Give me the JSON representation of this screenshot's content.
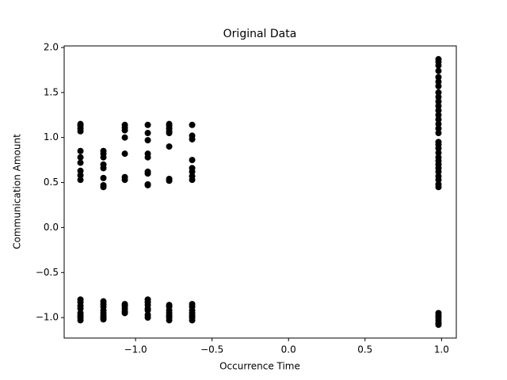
{
  "chart_data": {
    "type": "scatter",
    "title": "Original Data",
    "x_label": "Occurrence Time",
    "y_label": "Communication Amount",
    "color": "#000000",
    "x": [
      -1.36,
      -1.36,
      -1.36,
      -1.36,
      -1.36,
      -1.36,
      -1.36,
      -1.36,
      -1.36,
      -1.36,
      -1.36,
      -1.36,
      -1.36,
      -1.36,
      -1.36,
      -1.36,
      -1.36,
      -1.36,
      -1.21,
      -1.21,
      -1.21,
      -1.21,
      -1.21,
      -1.21,
      -1.21,
      -1.21,
      -1.21,
      -1.21,
      -1.21,
      -1.21,
      -1.21,
      -1.21,
      -1.21,
      -1.21,
      -1.07,
      -1.07,
      -1.07,
      -1.07,
      -1.07,
      -1.07,
      -1.07,
      -1.07,
      -1.07,
      -1.07,
      -1.07,
      -1.07,
      -0.92,
      -0.92,
      -0.92,
      -0.92,
      -0.92,
      -0.92,
      -0.92,
      -0.92,
      -0.92,
      -0.92,
      -0.92,
      -0.92,
      -0.92,
      -0.92,
      -0.92,
      -0.92,
      -0.78,
      -0.78,
      -0.78,
      -0.78,
      -0.78,
      -0.78,
      -0.78,
      -0.78,
      -0.78,
      -0.78,
      -0.78,
      -0.78,
      -0.78,
      -0.78,
      -0.78,
      -0.63,
      -0.63,
      -0.63,
      -0.63,
      -0.63,
      -0.63,
      -0.63,
      -0.63,
      -0.63,
      -0.63,
      -0.63,
      -0.63,
      -0.63,
      -0.63,
      -0.63,
      0.98,
      0.98,
      0.98,
      0.98,
      0.98,
      0.98,
      0.98,
      0.98,
      0.98,
      0.98,
      0.98,
      0.98,
      0.98,
      0.98,
      0.98,
      0.98,
      0.98,
      0.98,
      0.98,
      0.98,
      0.98,
      0.98,
      0.98,
      0.98,
      0.98,
      0.98,
      0.98,
      0.98,
      0.98,
      0.98,
      0.98,
      0.98,
      0.98,
      0.98,
      0.98,
      0.98
    ],
    "values": [
      1.15,
      1.13,
      1.1,
      1.07,
      0.85,
      0.78,
      0.72,
      0.63,
      0.58,
      0.53,
      -0.8,
      -0.83,
      -0.87,
      -0.9,
      -0.95,
      -0.98,
      -1.0,
      -1.03,
      0.85,
      0.82,
      0.78,
      0.7,
      0.66,
      0.55,
      0.47,
      0.45,
      -0.82,
      -0.85,
      -0.88,
      -0.92,
      -0.95,
      -0.98,
      -1.0,
      -1.02,
      1.14,
      1.11,
      1.08,
      1.0,
      0.82,
      0.56,
      0.53,
      -0.85,
      -0.87,
      -0.9,
      -0.93,
      -0.95,
      1.14,
      1.05,
      0.97,
      0.82,
      0.78,
      0.62,
      0.6,
      0.48,
      0.47,
      -0.8,
      -0.83,
      -0.86,
      -0.9,
      -0.92,
      -0.97,
      -1.0,
      1.15,
      1.13,
      1.1,
      1.07,
      1.05,
      0.9,
      0.54,
      0.52,
      -0.86,
      -0.88,
      -0.92,
      -0.95,
      -0.98,
      -1.0,
      -1.03,
      1.14,
      1.02,
      0.98,
      0.75,
      0.66,
      0.62,
      0.57,
      0.53,
      -0.85,
      -0.88,
      -0.92,
      -0.95,
      -0.98,
      -1.0,
      -1.03,
      1.87,
      1.84,
      1.8,
      1.74,
      1.67,
      1.62,
      1.57,
      1.5,
      1.45,
      1.4,
      1.35,
      1.3,
      1.25,
      1.2,
      1.15,
      1.1,
      1.05,
      0.95,
      0.92,
      0.88,
      0.83,
      0.78,
      0.74,
      0.7,
      0.66,
      0.62,
      0.57,
      0.53,
      0.48,
      0.45,
      -0.95,
      -0.98,
      -1.0,
      -1.03,
      -1.06,
      -1.08
    ],
    "xlim": [
      -1.4665,
      1.0965
    ],
    "ylim": [
      -1.2275,
      2.0175
    ],
    "xticks": [
      {
        "value": -1.0,
        "label": "−1.0"
      },
      {
        "value": -0.5,
        "label": "−0.5"
      },
      {
        "value": 0.0,
        "label": "0.0"
      },
      {
        "value": 0.5,
        "label": "0.5"
      },
      {
        "value": 1.0,
        "label": "1.0"
      }
    ],
    "yticks": [
      {
        "value": -1.0,
        "label": "−1.0"
      },
      {
        "value": -0.5,
        "label": "−0.5"
      },
      {
        "value": 0.0,
        "label": "0.0"
      },
      {
        "value": 0.5,
        "label": "0.5"
      },
      {
        "value": 1.0,
        "label": "1.0"
      },
      {
        "value": 1.5,
        "label": "1.5"
      },
      {
        "value": 2.0,
        "label": "2.0"
      }
    ]
  }
}
